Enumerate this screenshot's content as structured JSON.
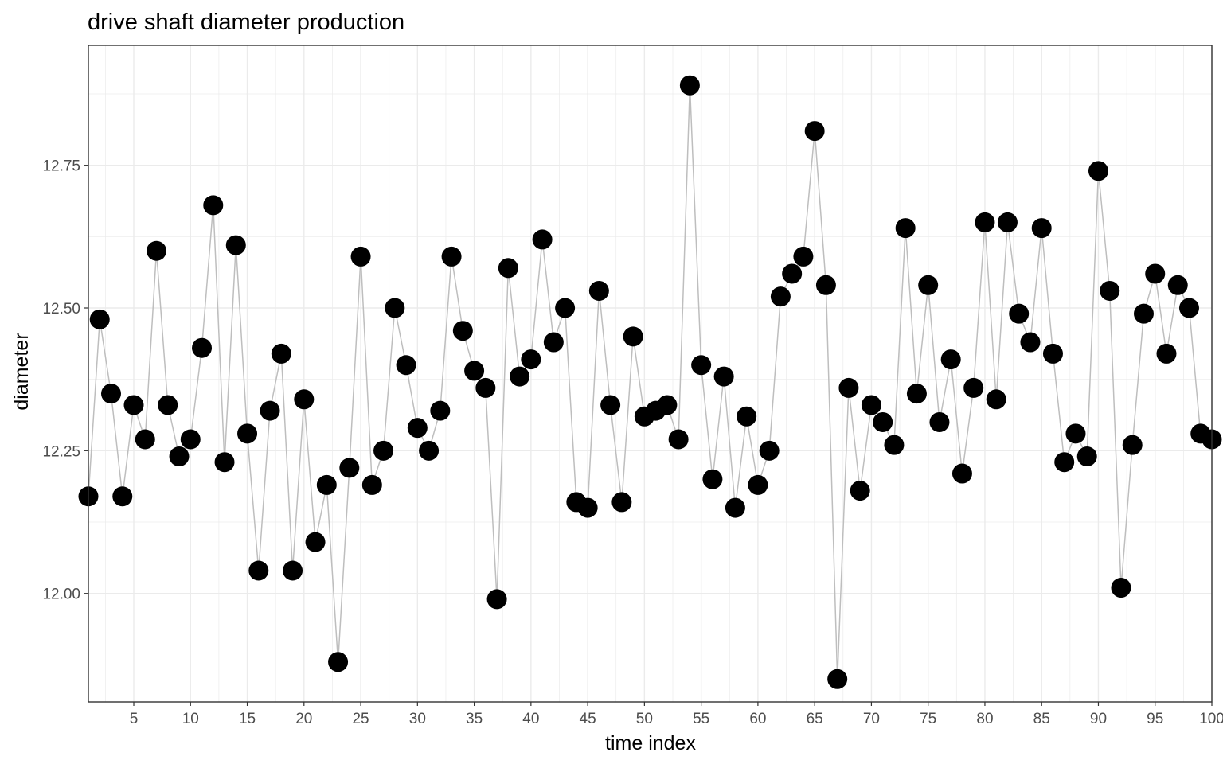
{
  "chart_data": {
    "type": "scatter",
    "title": "drive shaft diameter production",
    "xlabel": "time index",
    "ylabel": "diameter",
    "xlim": [
      1,
      100
    ],
    "ylim": [
      11.81,
      12.96
    ],
    "x_ticks": [
      5,
      10,
      15,
      20,
      25,
      30,
      35,
      40,
      45,
      50,
      55,
      60,
      65,
      70,
      75,
      80,
      85,
      90,
      95,
      100
    ],
    "y_ticks": [
      12.0,
      12.25,
      12.5,
      12.75
    ],
    "y_tick_labels": [
      "12.00",
      "12.25",
      "12.50",
      "12.75"
    ],
    "grid": true,
    "connecting_line": true,
    "colors": {
      "points": "#000000",
      "line": "#bebebe",
      "grid": "#ebebeb",
      "border": "#333333"
    },
    "series": [
      {
        "x": [
          1,
          2,
          3,
          4,
          5,
          6,
          7,
          8,
          9,
          10,
          11,
          12,
          13,
          14,
          15,
          16,
          17,
          18,
          19,
          20,
          21,
          22,
          23,
          24,
          25,
          26,
          27,
          28,
          29,
          30,
          31,
          32,
          33,
          34,
          35,
          36,
          37,
          38,
          39,
          40,
          41,
          42,
          43,
          44,
          45,
          46,
          47,
          48,
          49,
          50,
          51,
          52,
          53,
          54,
          55,
          56,
          57,
          58,
          59,
          60,
          61,
          62,
          63,
          64,
          65,
          66,
          67,
          68,
          69,
          70,
          71,
          72,
          73,
          74,
          75,
          76,
          77,
          78,
          79,
          80,
          81,
          82,
          83,
          84,
          85,
          86,
          87,
          88,
          89,
          90,
          91,
          92,
          93,
          94,
          95,
          96,
          97,
          98,
          99,
          100
        ],
        "y": [
          12.17,
          12.48,
          12.35,
          12.17,
          12.33,
          12.27,
          12.6,
          12.33,
          12.24,
          12.27,
          12.43,
          12.68,
          12.23,
          12.61,
          12.28,
          12.04,
          12.32,
          12.42,
          12.04,
          12.34,
          12.09,
          12.19,
          11.88,
          12.22,
          12.59,
          12.19,
          12.25,
          12.5,
          12.4,
          12.29,
          12.25,
          12.32,
          12.59,
          12.46,
          12.39,
          12.36,
          11.99,
          12.57,
          12.38,
          12.41,
          12.62,
          12.44,
          12.5,
          12.16,
          12.15,
          12.53,
          12.33,
          12.16,
          12.45,
          12.31,
          12.32,
          12.33,
          12.27,
          12.89,
          12.4,
          12.2,
          12.38,
          12.15,
          12.31,
          12.19,
          12.25,
          12.52,
          12.56,
          12.59,
          12.81,
          12.54,
          11.85,
          12.36,
          12.18,
          12.33,
          12.3,
          12.26,
          12.64,
          12.35,
          12.54,
          12.3,
          12.41,
          12.21,
          12.36,
          12.65,
          12.34,
          12.65,
          12.49,
          12.44,
          12.64,
          12.42,
          12.23,
          12.28,
          12.24,
          12.74,
          12.53,
          12.01,
          12.26,
          12.49,
          12.56,
          12.42,
          12.54,
          12.5,
          12.28,
          12.27
        ]
      }
    ]
  }
}
